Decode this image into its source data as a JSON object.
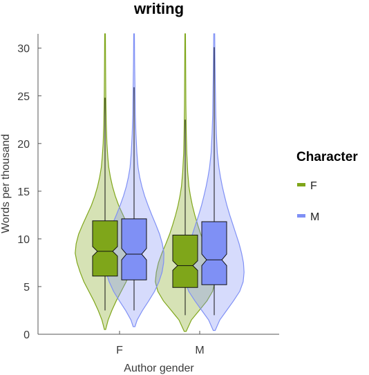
{
  "chart_data": {
    "type": "violin",
    "title": "writing",
    "xlabel": "Author gender",
    "ylabel": "Words per thousand",
    "categories": [
      "F",
      "M"
    ],
    "ylim": [
      0,
      31.5
    ],
    "yticks": [
      0,
      5,
      10,
      15,
      20,
      25,
      30
    ],
    "grid": false,
    "legend": {
      "title": "Character",
      "position": "right",
      "entries": [
        {
          "label": "F",
          "color": "#7fa61a"
        },
        {
          "label": "M",
          "color": "#7f90f5"
        }
      ]
    },
    "series": [
      {
        "name": "F",
        "color": "#7fa61a",
        "groups": [
          {
            "category": "F",
            "q1": 6.1,
            "median": 8.7,
            "q3": 11.9,
            "notch_low": 8.2,
            "notch_high": 9.2,
            "whisker_low": 2.5,
            "whisker_high": 24.8,
            "min": 0.5,
            "max": 31.5,
            "density": [
              [
                0.5,
                0.02
              ],
              [
                1.5,
                0.1
              ],
              [
                2.5,
                0.22
              ],
              [
                3.5,
                0.36
              ],
              [
                4.5,
                0.52
              ],
              [
                5.5,
                0.68
              ],
              [
                6.5,
                0.8
              ],
              [
                7.5,
                0.9
              ],
              [
                8.5,
                0.96
              ],
              [
                9.5,
                0.93
              ],
              [
                10.5,
                0.85
              ],
              [
                11.5,
                0.72
              ],
              [
                12.5,
                0.58
              ],
              [
                13.5,
                0.44
              ],
              [
                14.5,
                0.33
              ],
              [
                15.5,
                0.24
              ],
              [
                16.5,
                0.17
              ],
              [
                17.5,
                0.12
              ],
              [
                18.5,
                0.09
              ],
              [
                20,
                0.06
              ],
              [
                22,
                0.04
              ],
              [
                25,
                0.025
              ],
              [
                28,
                0.018
              ],
              [
                31.5,
                0.012
              ]
            ]
          },
          {
            "category": "M",
            "q1": 4.9,
            "median": 7.2,
            "q3": 10.4,
            "notch_low": 6.7,
            "notch_high": 7.7,
            "whisker_low": 2.0,
            "whisker_high": 22.5,
            "min": 0.3,
            "max": 31.5,
            "density": [
              [
                0.3,
                0.03
              ],
              [
                1.5,
                0.2
              ],
              [
                2.5,
                0.45
              ],
              [
                3.5,
                0.7
              ],
              [
                4.5,
                0.88
              ],
              [
                5.5,
                0.96
              ],
              [
                6.5,
                0.93
              ],
              [
                7.5,
                0.86
              ],
              [
                8.5,
                0.75
              ],
              [
                9.5,
                0.62
              ],
              [
                10.5,
                0.5
              ],
              [
                11.5,
                0.4
              ],
              [
                12.5,
                0.31
              ],
              [
                13.5,
                0.23
              ],
              [
                14.5,
                0.17
              ],
              [
                15.5,
                0.12
              ],
              [
                17,
                0.08
              ],
              [
                19,
                0.05
              ],
              [
                21,
                0.035
              ],
              [
                24,
                0.022
              ],
              [
                28,
                0.015
              ],
              [
                31.5,
                0.01
              ]
            ]
          }
        ]
      },
      {
        "name": "M",
        "color": "#7f90f5",
        "groups": [
          {
            "category": "F",
            "q1": 5.7,
            "median": 8.4,
            "q3": 12.1,
            "notch_low": 7.8,
            "notch_high": 9.0,
            "whisker_low": 2.5,
            "whisker_high": 25.9,
            "min": 0.8,
            "max": 31.5,
            "density": [
              [
                0.8,
                0.03
              ],
              [
                1.5,
                0.1
              ],
              [
                2.5,
                0.27
              ],
              [
                3.5,
                0.47
              ],
              [
                4.5,
                0.66
              ],
              [
                5.5,
                0.8
              ],
              [
                6.5,
                0.9
              ],
              [
                7.5,
                0.95
              ],
              [
                8.5,
                0.96
              ],
              [
                9.5,
                0.91
              ],
              [
                10.5,
                0.82
              ],
              [
                11.5,
                0.7
              ],
              [
                12.5,
                0.57
              ],
              [
                13.5,
                0.45
              ],
              [
                14.5,
                0.34
              ],
              [
                15.5,
                0.25
              ],
              [
                16.5,
                0.18
              ],
              [
                17.5,
                0.13
              ],
              [
                19,
                0.09
              ],
              [
                21,
                0.06
              ],
              [
                23,
                0.04
              ],
              [
                26,
                0.028
              ],
              [
                28.5,
                0.018
              ],
              [
                31.5,
                0.012
              ]
            ]
          },
          {
            "category": "M",
            "q1": 5.2,
            "median": 7.8,
            "q3": 11.8,
            "notch_low": 7.2,
            "notch_high": 8.4,
            "whisker_low": 2.0,
            "whisker_high": 30.1,
            "min": 0.4,
            "max": 31.5,
            "density": [
              [
                0.4,
                0.03
              ],
              [
                1.5,
                0.18
              ],
              [
                2.5,
                0.4
              ],
              [
                3.5,
                0.62
              ],
              [
                4.5,
                0.82
              ],
              [
                5.5,
                0.93
              ],
              [
                6.5,
                0.96
              ],
              [
                7.5,
                0.94
              ],
              [
                8.5,
                0.88
              ],
              [
                9.5,
                0.8
              ],
              [
                10.5,
                0.7
              ],
              [
                11.5,
                0.6
              ],
              [
                12.5,
                0.5
              ],
              [
                13.5,
                0.41
              ],
              [
                14.5,
                0.33
              ],
              [
                15.5,
                0.26
              ],
              [
                16.5,
                0.2
              ],
              [
                17.5,
                0.15
              ],
              [
                19,
                0.1
              ],
              [
                21,
                0.07
              ],
              [
                23,
                0.05
              ],
              [
                26,
                0.035
              ],
              [
                28.5,
                0.025
              ],
              [
                31.5,
                0.015
              ]
            ]
          }
        ]
      }
    ]
  }
}
